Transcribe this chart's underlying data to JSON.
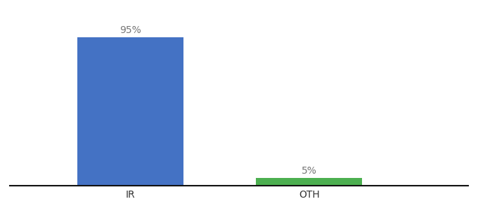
{
  "categories": [
    "IR",
    "OTH"
  ],
  "values": [
    95,
    5
  ],
  "bar_colors": [
    "#4472c4",
    "#4caf50"
  ],
  "bar_labels": [
    "95%",
    "5%"
  ],
  "background_color": "#ffffff",
  "ylim": [
    0,
    108
  ],
  "label_fontsize": 10,
  "tick_fontsize": 10,
  "label_color": "#777777",
  "tick_color": "#333333",
  "bar_positions": [
    0.25,
    0.62
  ],
  "bar_width": 0.22
}
